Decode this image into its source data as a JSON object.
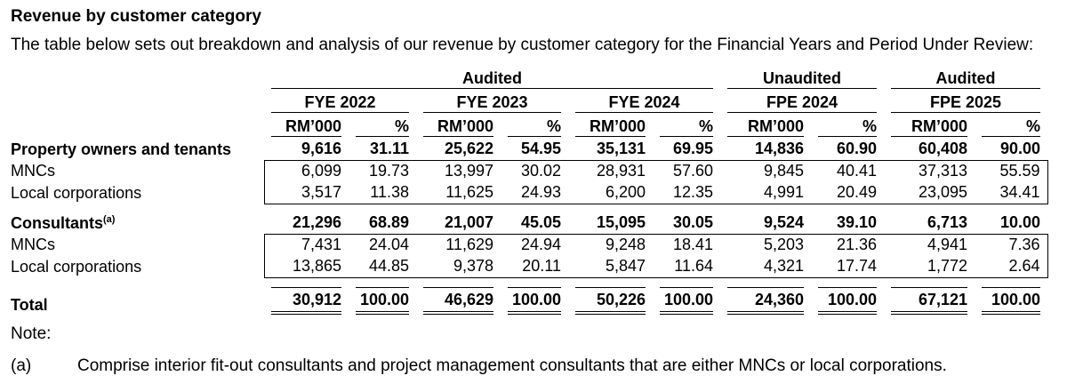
{
  "page": {
    "title": "Revenue by customer category",
    "intro": "The table below sets out breakdown and analysis of our revenue by customer category for the Financial Years and Period Under Review:",
    "note_label": "Note:",
    "note_a_marker": "(a)",
    "note_a_text": "Comprise interior fit-out consultants and project management consultants that are either MNCs or local corporations."
  },
  "colors": {
    "text": "#000000",
    "background": "#ffffff",
    "rule_lines": "#000000"
  },
  "table": {
    "audit_groups": [
      {
        "label": "Audited",
        "span_periods": [
          "FYE 2022",
          "FYE 2023",
          "FYE 2024"
        ]
      },
      {
        "label": "Unaudited",
        "span_periods": [
          "FPE 2024"
        ]
      },
      {
        "label": "Audited",
        "span_periods": [
          "FPE 2025"
        ]
      }
    ],
    "periods": [
      "FYE 2022",
      "FYE 2023",
      "FYE 2024",
      "FPE 2024",
      "FPE 2025"
    ],
    "unit_header": "RM’000",
    "pct_header": "%",
    "rows": [
      {
        "label": "Property owners and tenants",
        "style": "bold",
        "values": [
          "9,616",
          "31.11",
          "25,622",
          "54.95",
          "35,131",
          "69.95",
          "14,836",
          "60.90",
          "60,408",
          "90.00"
        ]
      },
      {
        "label": "MNCs",
        "style": "sub-first",
        "values": [
          "6,099",
          "19.73",
          "13,997",
          "30.02",
          "28,931",
          "57.60",
          "9,845",
          "40.41",
          "37,313",
          "55.59"
        ]
      },
      {
        "label": "Local corporations",
        "style": "sub-last",
        "values": [
          "3,517",
          "11.38",
          "11,625",
          "24.93",
          "6,200",
          "12.35",
          "4,991",
          "20.49",
          "23,095",
          "34.41"
        ]
      },
      {
        "label": "Consultants",
        "label_sup": "(a)",
        "style": "bold",
        "values": [
          "21,296",
          "68.89",
          "21,007",
          "45.05",
          "15,095",
          "30.05",
          "9,524",
          "39.10",
          "6,713",
          "10.00"
        ]
      },
      {
        "label": "MNCs",
        "style": "sub-first",
        "values": [
          "7,431",
          "24.04",
          "11,629",
          "24.94",
          "9,248",
          "18.41",
          "5,203",
          "21.36",
          "4,941",
          "7.36"
        ]
      },
      {
        "label": "Local corporations",
        "style": "sub-last",
        "values": [
          "13,865",
          "44.85",
          "9,378",
          "20.11",
          "5,847",
          "11.64",
          "4,321",
          "17.74",
          "1,772",
          "2.64"
        ]
      },
      {
        "label": "Total",
        "style": "total",
        "values": [
          "30,912",
          "100.00",
          "46,629",
          "100.00",
          "50,226",
          "100.00",
          "24,360",
          "100.00",
          "67,121",
          "100.00"
        ]
      }
    ]
  }
}
